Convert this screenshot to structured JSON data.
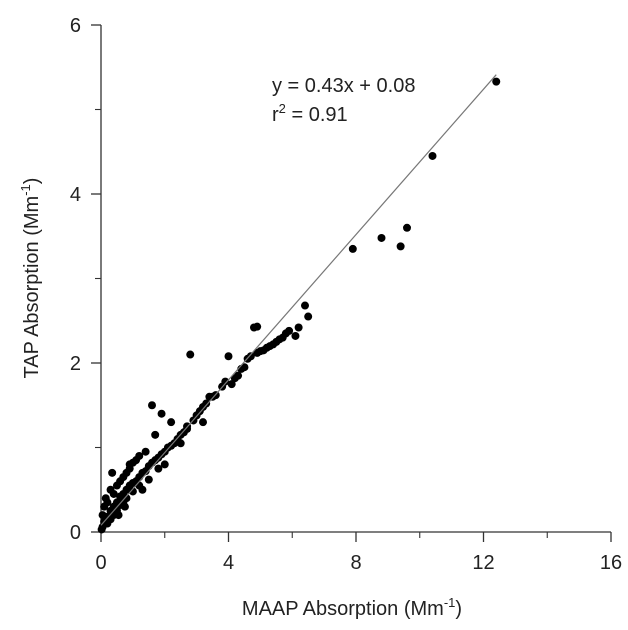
{
  "chart_data": {
    "type": "scatter",
    "title": "",
    "xlabel": {
      "main": "MAAP Absorption (Mm",
      "sup": "-1",
      "close": ")"
    },
    "ylabel": {
      "main": "TAP Absorption (Mm",
      "sup": "-1",
      "close": ")"
    },
    "xlim": [
      0,
      16
    ],
    "ylim": [
      0,
      6
    ],
    "x_major_ticks": [
      0,
      4,
      8,
      12,
      16
    ],
    "x_minor_ticks": [
      2,
      6,
      10,
      14
    ],
    "y_major_ticks": [
      0,
      2,
      4,
      6
    ],
    "y_minor_ticks": [
      1,
      3,
      5
    ],
    "grid": false,
    "fit": {
      "slope": 0.43,
      "intercept": 0.08,
      "x_range": [
        0,
        12.4
      ]
    },
    "annotations": {
      "equation": "y = 0.43x + 0.08",
      "r2_prefix": "r",
      "r2_sup": "2",
      "r2_value": " = 0.91"
    },
    "colors": {
      "points": "#000000",
      "fit_line": "#777777",
      "axes": "#333333"
    },
    "series": [
      {
        "x": [
          12.4,
          10.4,
          9.6,
          9.4,
          8.8,
          7.9,
          6.5,
          6.4,
          6.2,
          6.1,
          5.9,
          5.8,
          5.7,
          5.6,
          5.5,
          5.4,
          5.3,
          5.2,
          5.1,
          5.0,
          4.9,
          4.8,
          4.9,
          4.7,
          4.6,
          4.5,
          4.4,
          4.3,
          4.2,
          4.1,
          4.0,
          3.9,
          3.8,
          3.6,
          3.5,
          3.4,
          3.3,
          3.2,
          3.1,
          3.0,
          2.9,
          2.8,
          2.7,
          2.7,
          2.6,
          2.5,
          2.4,
          2.3,
          2.2,
          2.1,
          2.0,
          1.9,
          1.8,
          1.7,
          1.7,
          1.6,
          1.5,
          1.4,
          1.4,
          1.3,
          1.2,
          1.2,
          1.1,
          1.0,
          1.0,
          0.9,
          0.9,
          0.8,
          0.8,
          0.7,
          0.7,
          0.6,
          0.6,
          0.5,
          0.5,
          0.4,
          0.4,
          0.3,
          0.3,
          0.2,
          0.2,
          0.1,
          0.1,
          0.05,
          0.05,
          0.02,
          1.6,
          1.9,
          2.2,
          1.0,
          0.6,
          0.8,
          1.2,
          0.4,
          0.3,
          0.9,
          1.5,
          2.5,
          3.2,
          2.0,
          1.3,
          0.7,
          0.5,
          0.2,
          0.15,
          0.35,
          0.55,
          0.75,
          1.1,
          1.8
        ],
        "y": [
          5.33,
          4.45,
          3.6,
          3.38,
          3.48,
          3.35,
          2.55,
          2.68,
          2.42,
          2.32,
          2.38,
          2.35,
          2.3,
          2.28,
          2.25,
          2.22,
          2.2,
          2.18,
          2.15,
          2.14,
          2.43,
          2.42,
          2.12,
          2.08,
          2.05,
          1.95,
          1.93,
          1.85,
          1.82,
          1.75,
          2.08,
          1.78,
          1.72,
          1.62,
          1.6,
          1.6,
          1.52,
          1.48,
          1.43,
          1.38,
          1.32,
          2.1,
          1.22,
          1.25,
          1.18,
          1.15,
          1.1,
          1.05,
          1.02,
          1.0,
          0.95,
          0.92,
          0.88,
          0.85,
          1.15,
          0.82,
          0.78,
          0.72,
          0.95,
          0.7,
          0.65,
          0.9,
          0.6,
          0.58,
          0.82,
          0.55,
          0.75,
          0.5,
          0.7,
          0.45,
          0.65,
          0.42,
          0.6,
          0.35,
          0.55,
          0.3,
          0.45,
          0.25,
          0.5,
          0.18,
          0.35,
          0.12,
          0.3,
          0.06,
          0.2,
          0.03,
          1.5,
          1.4,
          1.3,
          0.48,
          0.32,
          0.4,
          0.55,
          0.2,
          0.15,
          0.8,
          0.62,
          1.05,
          1.3,
          0.8,
          0.5,
          0.35,
          0.25,
          0.1,
          0.4,
          0.7,
          0.2,
          0.3,
          0.85,
          0.75
        ]
      }
    ]
  }
}
